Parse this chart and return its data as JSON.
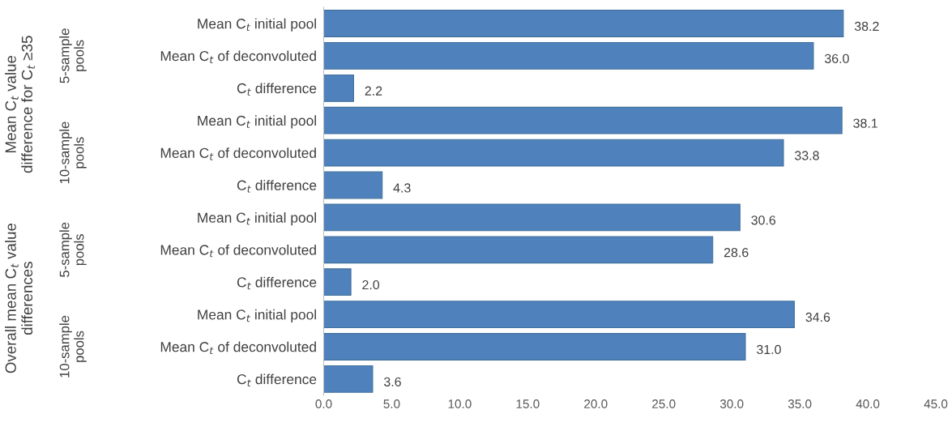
{
  "chart_data": {
    "type": "bar",
    "orientation": "horizontal",
    "categories": [
      "Mean C$_{t}$ initial pool",
      "Mean C$_{t}$ of deconvoluted",
      "C$_{t}$ difference",
      "Mean C$_{t}$ initial pool",
      "Mean C$_{t}$ of deconvoluted",
      "C$_{t}$ difference",
      "Mean C$_{t}$ initial pool",
      "Mean C$_{t}$ of deconvoluted",
      "C$_{t}$ difference",
      "Mean C$_{t}$ initial pool",
      "Mean C$_{t}$ of deconvoluted",
      "C$_{t}$ difference"
    ],
    "values": [
      38.2,
      36.0,
      2.2,
      38.1,
      33.8,
      4.3,
      30.6,
      28.6,
      2.0,
      34.6,
      31.0,
      3.6
    ],
    "value_labels": [
      "38.2",
      "36.0",
      "2.2",
      "38.1",
      "33.8",
      "4.3",
      "30.6",
      "28.6",
      "2.0",
      "34.6",
      "31.0",
      "3.6"
    ],
    "color": "#4f81bd",
    "xlim": [
      0,
      45
    ],
    "xticks": [
      {
        "value": 0,
        "label": "0.0"
      },
      {
        "value": 5,
        "label": "5.0"
      },
      {
        "value": 10,
        "label": "10.0"
      },
      {
        "value": 15,
        "label": "15.0"
      },
      {
        "value": 20,
        "label": "20.0"
      },
      {
        "value": 25,
        "label": "25.0"
      },
      {
        "value": 30,
        "label": "30.0"
      },
      {
        "value": 35,
        "label": "35.0"
      },
      {
        "value": 40,
        "label": "40.0"
      },
      {
        "value": 45,
        "label": "45.0"
      }
    ],
    "annotations": [
      "Mean C$_{t}$ value\ndifference for C$_{t}$ ≥35",
      "Overall mean C$_{t}$ value\ndifferences",
      "5-sample\npools",
      "10-sample\npools",
      "5-sample\npools",
      "10-sample\npools"
    ],
    "grid": false,
    "legend": false
  }
}
